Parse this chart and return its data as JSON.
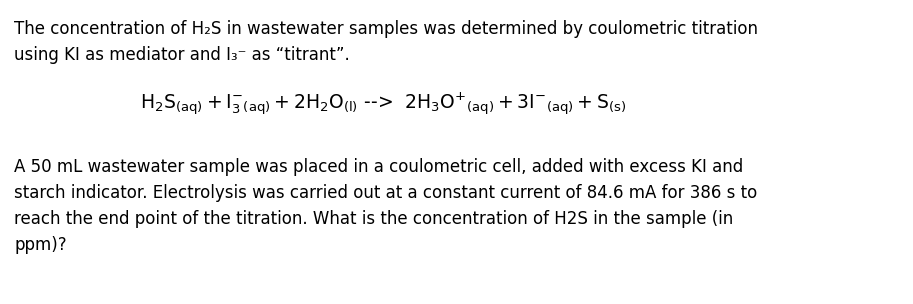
{
  "background_color": "#ffffff",
  "figsize": [
    9.13,
    3.04
  ],
  "dpi": 100,
  "text_color": "#000000",
  "font_size_body": 12.0,
  "font_size_equation": 13.5,
  "line1": "The concentration of H₂S in wastewater samples was determined by coulometric titration",
  "line2": "using KI as mediator and I₃⁻ as “titrant”.",
  "eq_text": "$\\mathregular{H_2S_{(aq)} + I_3^{-}{}_{(aq)} + 2H_2O_{(l)}}$ -->  $\\mathregular{2H_3O^{+}{}_{(aq)} + 3I^{-}{}_{(aq)} + S_{(s)}}$",
  "line4": "A 50 mL wastewater sample was placed in a coulometric cell, added with excess KI and",
  "line5": "starch indicator. Electrolysis was carried out at a constant current of 84.6 mA for 386 s to",
  "line6": "reach the end point of the titration. What is the concentration of H2S in the sample (in",
  "line7": "ppm)?"
}
